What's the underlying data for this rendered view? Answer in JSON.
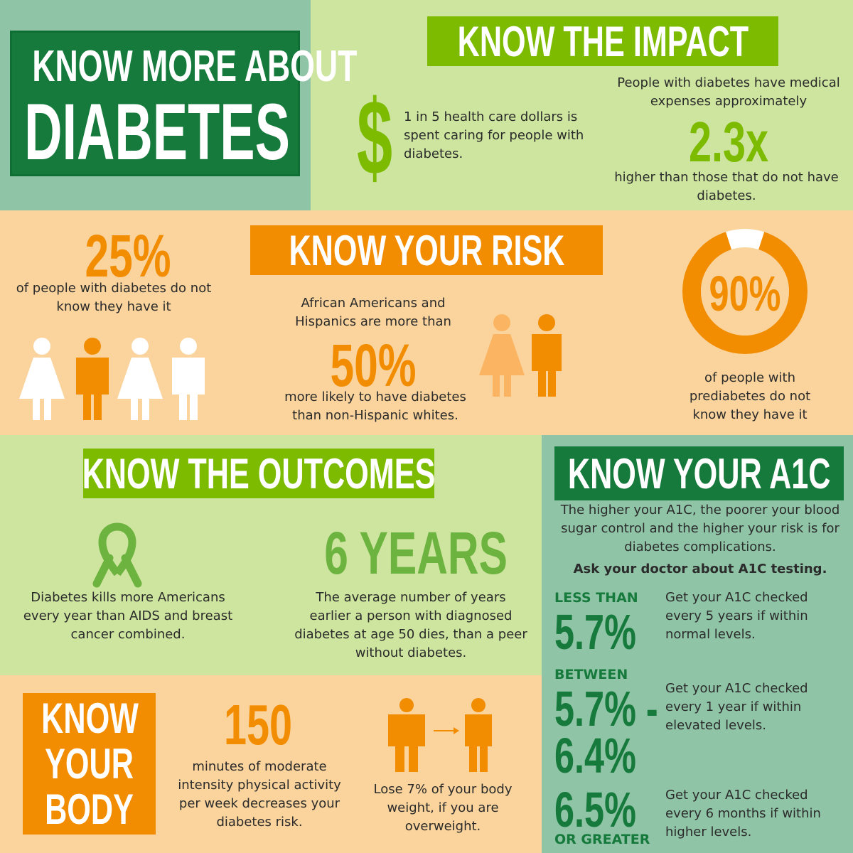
{
  "colors": {
    "teal_bg": "#8fc4a6",
    "lime_bg": "#cde59e",
    "peach_bg": "#fad49c",
    "dark_green": "#157a3b",
    "bright_green": "#7cbb00",
    "green_text": "#6db33f",
    "orange": "#f28c00",
    "orange_light": "#fbb462",
    "white": "#ffffff"
  },
  "title": {
    "line1": "KNOW MORE ABOUT",
    "line2": "DIABETES"
  },
  "impact": {
    "heading": "KNOW THE IMPACT",
    "dollar_symbol": "$",
    "dollar_text": "1 in 5 health care dollars is spent caring for people with diabetes.",
    "expense_pre": "People with diabetes have medical expenses approximately",
    "expense_value": "2.3x",
    "expense_post": "higher than those that do not have diabetes."
  },
  "risk": {
    "heading": "KNOW YOUR RISK",
    "unaware_value": "25%",
    "unaware_text": "of people with diabetes do not know they have it",
    "minority_pre": "African Americans and Hispanics are more than",
    "minority_value": "50%",
    "minority_post": "more likely to have diabetes than non-Hispanic whites.",
    "prediabetes_value": "90%",
    "prediabetes_fraction": 0.9,
    "prediabetes_text": "of people with prediabetes do not know they have it",
    "icons": [
      "female-person-icon",
      "male-person-icon",
      "ribbon-icon",
      "arrow-right-icon",
      "dollar-sign-icon"
    ]
  },
  "outcomes": {
    "heading": "KNOW THE OUTCOMES",
    "ribbon_text": "Diabetes kills more Americans every year than AIDS and breast cancer combined.",
    "years_value": "6 YEARS",
    "years_text": "The average number of years earlier a person with diagnosed diabetes at age 50 dies, than a peer without diabetes."
  },
  "body": {
    "heading_line1": "KNOW",
    "heading_line2": "YOUR",
    "heading_line3": "BODY",
    "minutes_value": "150",
    "minutes_text": "minutes of moderate intensity physical activity per week decreases your diabetes risk.",
    "weight_text": "Lose 7% of your body weight, if you are overweight."
  },
  "a1c": {
    "heading": "KNOW YOUR A1C",
    "intro": "The higher your A1C, the poorer your blood sugar control and the higher your risk is for diabetes complications.",
    "ask": "Ask your doctor about A1C testing.",
    "levels": [
      {
        "label_top": "LESS THAN",
        "value": "5.7%",
        "advice": "Get your A1C checked every 5 years if within normal levels."
      },
      {
        "label_top": "BETWEEN",
        "value": "5.7% -",
        "value2": "6.4%",
        "advice": "Get your A1C checked every 1 year if within elevated levels."
      },
      {
        "value": "6.5%",
        "label_bottom": "OR GREATER",
        "advice": "Get your A1C checked every 6 months if within higher levels."
      }
    ]
  }
}
